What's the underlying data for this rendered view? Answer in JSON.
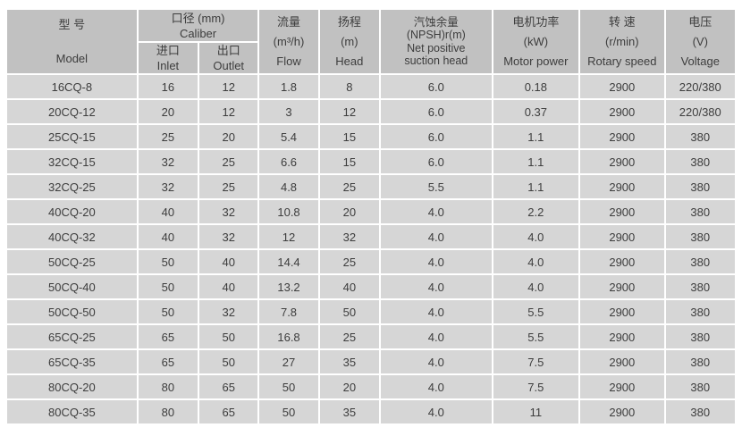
{
  "colors": {
    "page_bg": "#ffffff",
    "header_bg": "#c1c1c1",
    "row_bg": "#d6d6d6",
    "grid": "#ffffff",
    "text": "#3d3d3d"
  },
  "table": {
    "header": {
      "model": {
        "zh": "型 号",
        "en": "Model"
      },
      "caliber": {
        "zh": "口径 (mm)",
        "en": "Caliber"
      },
      "inlet": {
        "zh": "进口",
        "en": "Inlet"
      },
      "outlet": {
        "zh": "出口",
        "en": "Outlet"
      },
      "flow": {
        "zh": "流量",
        "unit": "(m³/h)",
        "en": "Flow"
      },
      "head": {
        "zh": "扬程",
        "unit": "(m)",
        "en": "Head"
      },
      "npsh": {
        "zh": "汽蚀余量",
        "unit": "(NPSH)r(m)",
        "en1": "Net positive",
        "en2": "suction head"
      },
      "motor_power": {
        "zh": "电机功率",
        "unit": "(kW)",
        "en": "Motor power"
      },
      "rotary_speed": {
        "zh": "转 速",
        "unit": "(r/min)",
        "en": "Rotary speed"
      },
      "voltage": {
        "zh": "电压",
        "unit": "(V)",
        "en": "Voltage"
      }
    },
    "rows": [
      [
        "16CQ-8",
        "16",
        "12",
        "1.8",
        "8",
        "6.0",
        "0.18",
        "2900",
        "220/380"
      ],
      [
        "20CQ-12",
        "20",
        "12",
        "3",
        "12",
        "6.0",
        "0.37",
        "2900",
        "220/380"
      ],
      [
        "25CQ-15",
        "25",
        "20",
        "5.4",
        "15",
        "6.0",
        "1.1",
        "2900",
        "380"
      ],
      [
        "32CQ-15",
        "32",
        "25",
        "6.6",
        "15",
        "6.0",
        "1.1",
        "2900",
        "380"
      ],
      [
        "32CQ-25",
        "32",
        "25",
        "4.8",
        "25",
        "5.5",
        "1.1",
        "2900",
        "380"
      ],
      [
        "40CQ-20",
        "40",
        "32",
        "10.8",
        "20",
        "4.0",
        "2.2",
        "2900",
        "380"
      ],
      [
        "40CQ-32",
        "40",
        "32",
        "12",
        "32",
        "4.0",
        "4.0",
        "2900",
        "380"
      ],
      [
        "50CQ-25",
        "50",
        "40",
        "14.4",
        "25",
        "4.0",
        "4.0",
        "2900",
        "380"
      ],
      [
        "50CQ-40",
        "50",
        "40",
        "13.2",
        "40",
        "4.0",
        "4.0",
        "2900",
        "380"
      ],
      [
        "50CQ-50",
        "50",
        "32",
        "7.8",
        "50",
        "4.0",
        "5.5",
        "2900",
        "380"
      ],
      [
        "65CQ-25",
        "65",
        "50",
        "16.8",
        "25",
        "4.0",
        "5.5",
        "2900",
        "380"
      ],
      [
        "65CQ-35",
        "65",
        "50",
        "27",
        "35",
        "4.0",
        "7.5",
        "2900",
        "380"
      ],
      [
        "80CQ-20",
        "80",
        "65",
        "50",
        "20",
        "4.0",
        "7.5",
        "2900",
        "380"
      ],
      [
        "80CQ-35",
        "80",
        "65",
        "50",
        "35",
        "4.0",
        "11",
        "2900",
        "380"
      ]
    ]
  }
}
